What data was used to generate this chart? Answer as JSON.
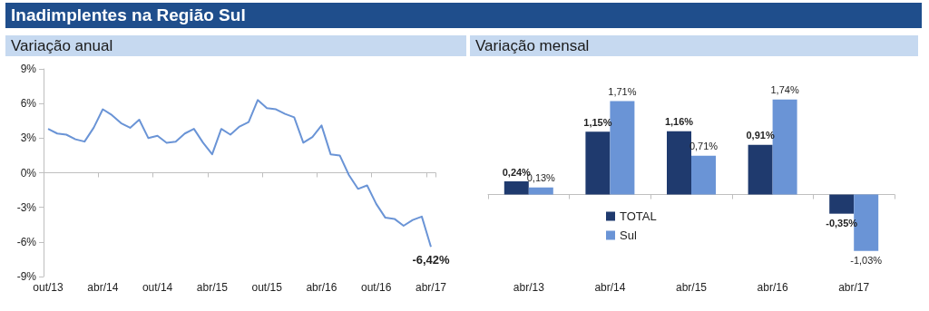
{
  "chart_data": [
    {
      "type": "line",
      "title": "Inadimplentes na Região Sul",
      "subtitle": "Variação anual",
      "categories": [
        "out/13",
        null,
        null,
        null,
        null,
        null,
        "abr/14",
        null,
        null,
        null,
        null,
        null,
        "out/14",
        null,
        null,
        null,
        null,
        null,
        "abr/15",
        null,
        null,
        null,
        null,
        null,
        "out/15",
        null,
        null,
        null,
        null,
        null,
        "abr/16",
        null,
        null,
        null,
        null,
        null,
        "out/16",
        null,
        null,
        null,
        null,
        null,
        "abr/17"
      ],
      "values": [
        3.8,
        3.4,
        3.3,
        2.9,
        2.7,
        3.9,
        5.5,
        5.0,
        4.3,
        3.9,
        4.6,
        3.0,
        3.2,
        2.6,
        2.7,
        3.4,
        3.8,
        2.6,
        1.6,
        3.8,
        3.3,
        4.0,
        4.4,
        6.3,
        5.6,
        5.5,
        5.1,
        4.8,
        2.6,
        3.1,
        4.1,
        1.6,
        1.5,
        -0.2,
        -1.4,
        -1.1,
        -2.7,
        -3.9,
        -4.0,
        -4.6,
        -4.1,
        -3.8,
        -6.42
      ],
      "value_labels": [
        null,
        null,
        null,
        null,
        null,
        null,
        null,
        null,
        null,
        null,
        null,
        null,
        null,
        null,
        null,
        null,
        null,
        null,
        null,
        null,
        null,
        null,
        null,
        null,
        null,
        null,
        null,
        null,
        null,
        null,
        null,
        null,
        null,
        null,
        null,
        null,
        null,
        null,
        null,
        null,
        null,
        null,
        "-6,42%"
      ],
      "color": "#6a94d6",
      "marker": "none",
      "line_style": "solid",
      "ylim": [
        -9,
        9
      ],
      "yticks": [
        {
          "value": -9,
          "label": "-9%"
        },
        {
          "value": -6,
          "label": "-6%"
        },
        {
          "value": -3,
          "label": "-3%"
        },
        {
          "value": 0,
          "label": "0%"
        },
        {
          "value": 3,
          "label": "3%"
        },
        {
          "value": 6,
          "label": "6%"
        },
        {
          "value": 9,
          "label": "9%"
        }
      ]
    },
    {
      "type": "bar",
      "subtitle": "Variação mensal",
      "categories": [
        "abr/13",
        "abr/14",
        "abr/15",
        "abr/16",
        "abr/17"
      ],
      "series": [
        {
          "name": "TOTAL",
          "color": "#1f3a6e",
          "values": [
            0.24,
            1.15,
            1.16,
            0.91,
            -0.35
          ],
          "value_labels": [
            "0,24%",
            "1,15%",
            "1,16%",
            "0,91%",
            "-0,35%"
          ]
        },
        {
          "name": "Sul",
          "color": "#6a94d6",
          "values": [
            0.13,
            1.71,
            0.71,
            1.74,
            -1.03
          ],
          "value_labels": [
            "0,13%",
            "1,71%",
            "0,71%",
            "1,74%",
            "-1,03%"
          ]
        }
      ],
      "legend": "bottom left"
    }
  ]
}
